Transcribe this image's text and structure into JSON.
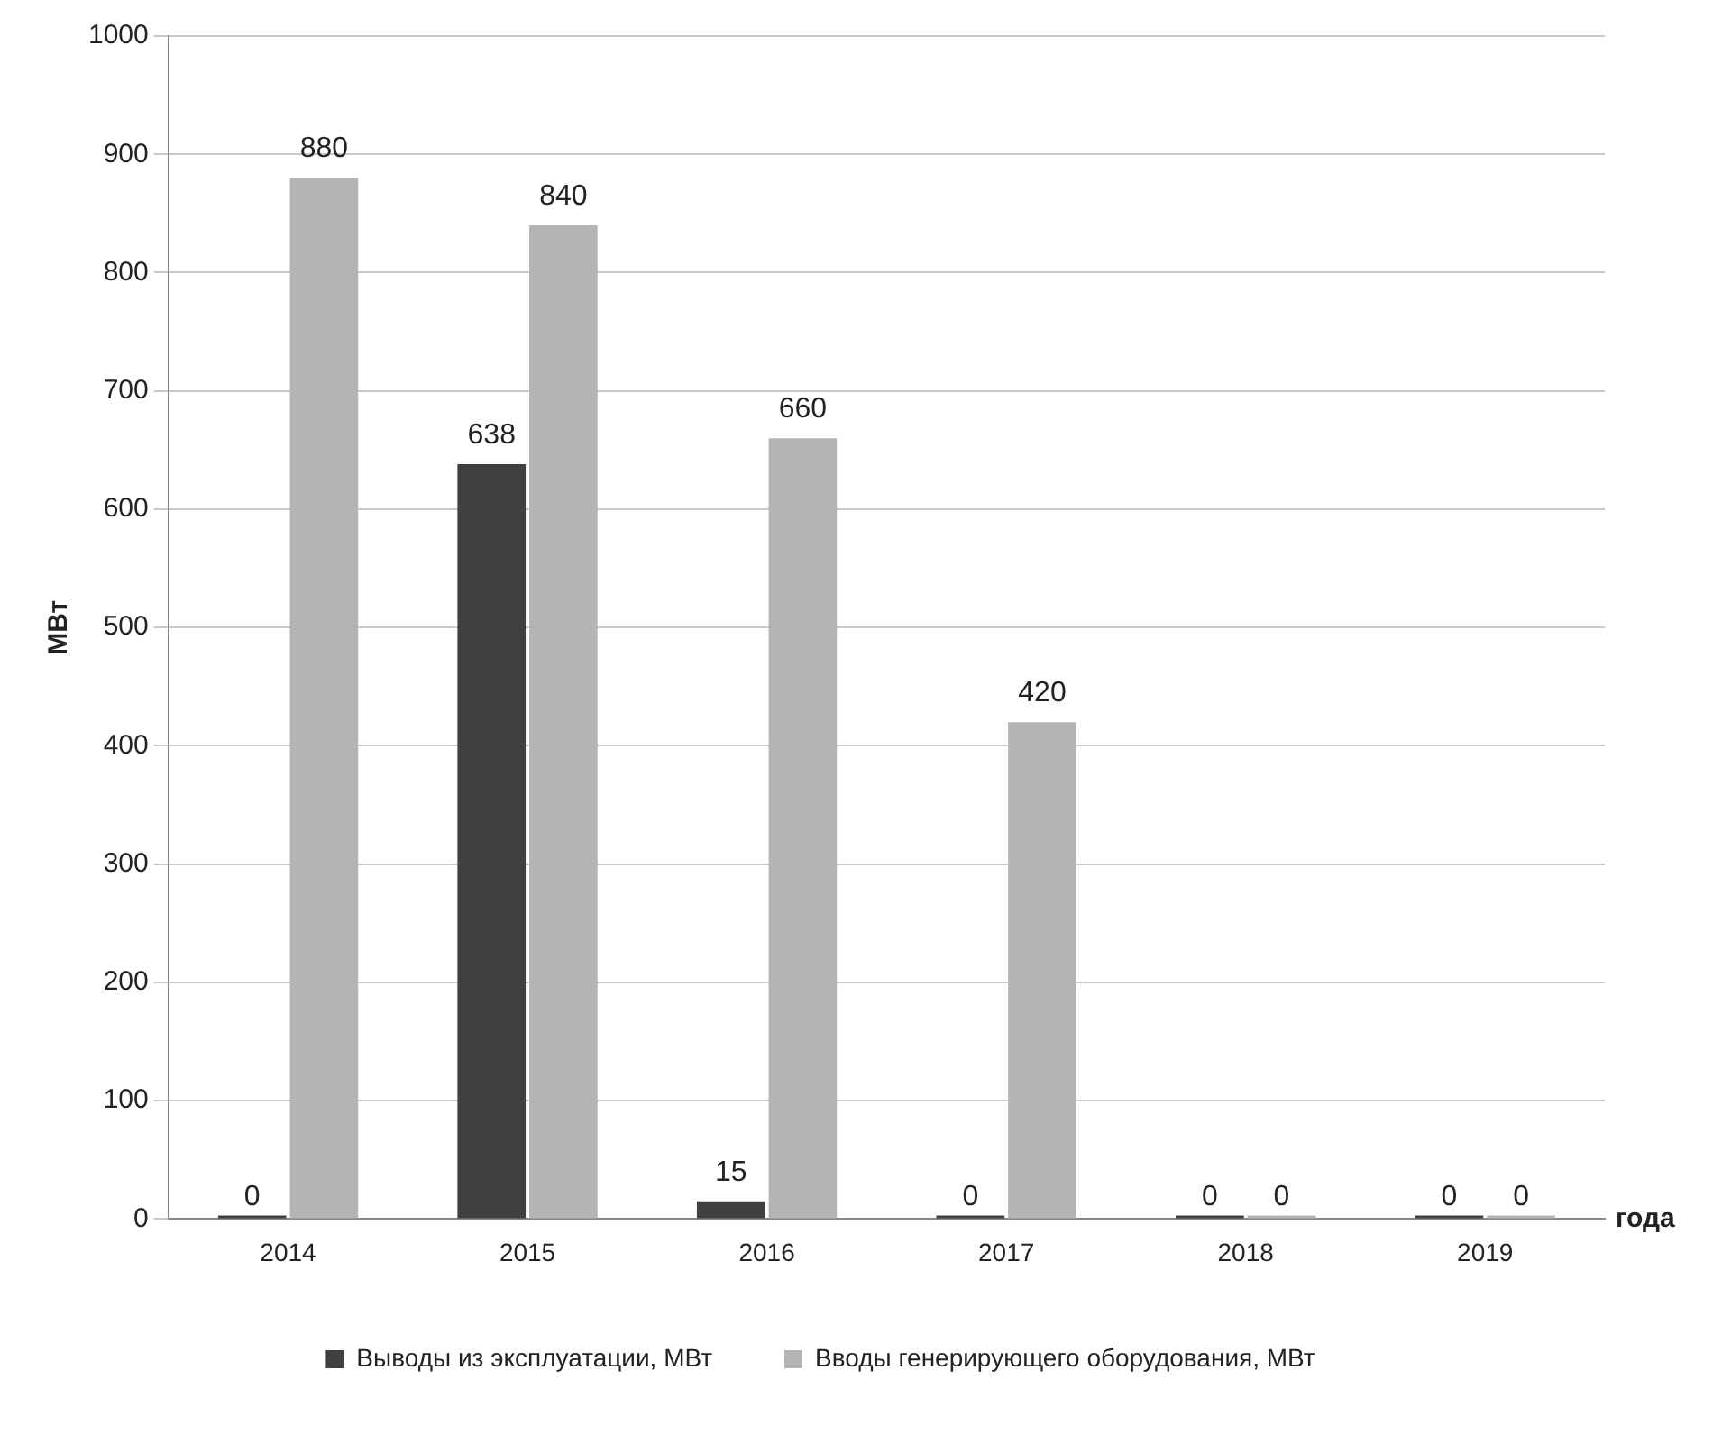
{
  "chart_data": {
    "type": "bar",
    "xlabel": "года",
    "ylabel": "МВт",
    "categories": [
      "2014",
      "2015",
      "2016",
      "2017",
      "2018",
      "2019"
    ],
    "series": [
      {
        "name": "Выводы из эксплуатации, МВт",
        "color": "#404040",
        "values": [
          0,
          638,
          15,
          0,
          0,
          0
        ]
      },
      {
        "name": "Вводы генерирующего оборудования, МВт",
        "color": "#b4b4b4",
        "values": [
          880,
          840,
          660,
          420,
          0,
          0
        ]
      }
    ],
    "ylim": [
      0,
      1000
    ],
    "yticks": [
      0,
      100,
      200,
      300,
      400,
      500,
      600,
      700,
      800,
      900,
      1000
    ],
    "grid": "y",
    "legend": "bottom",
    "data_labels": true
  }
}
